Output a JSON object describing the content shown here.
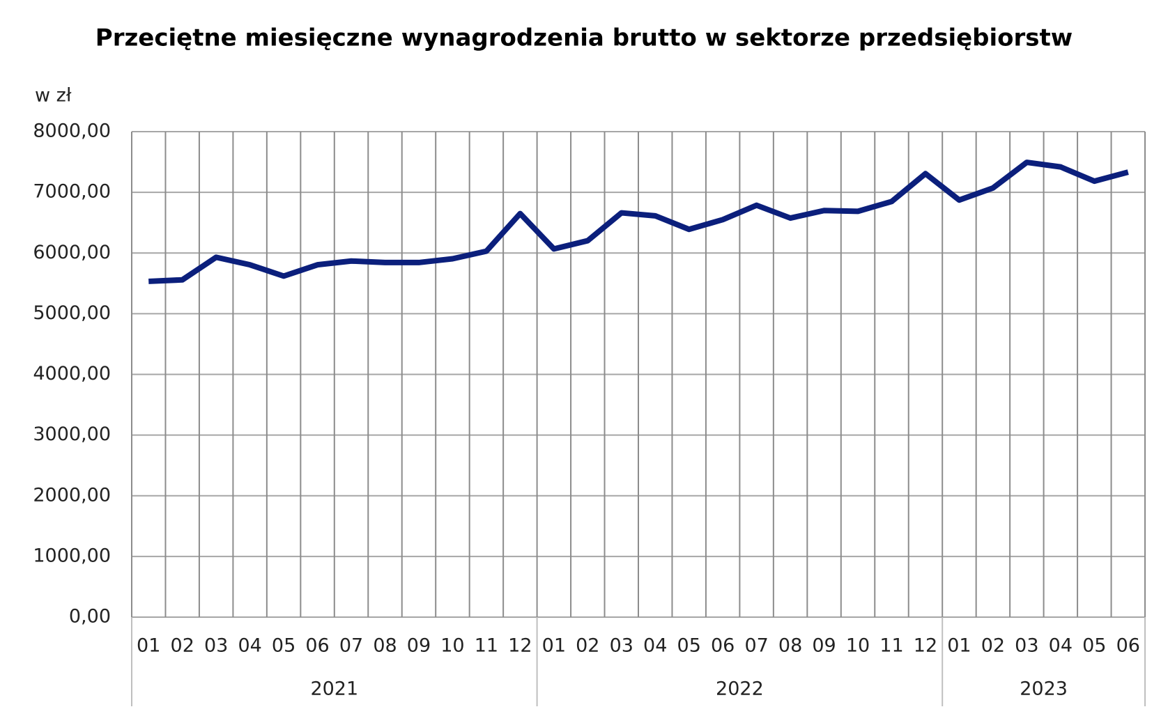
{
  "chart_data": {
    "type": "line",
    "title": "Przeciętne miesięczne wynagrodzenia brutto w sektorze przedsiębiorstw",
    "y_axis_label": "w zł",
    "groups": [
      {
        "label": "2021",
        "categories": [
          "01",
          "02",
          "03",
          "04",
          "05",
          "06",
          "07",
          "08",
          "09",
          "10",
          "11",
          "12"
        ]
      },
      {
        "label": "2022",
        "categories": [
          "01",
          "02",
          "03",
          "04",
          "05",
          "06",
          "07",
          "08",
          "09",
          "10",
          "11",
          "12"
        ]
      },
      {
        "label": "2023",
        "categories": [
          "01",
          "02",
          "03",
          "04",
          "05",
          "06"
        ]
      }
    ],
    "series": [
      {
        "color": "#0b1f7c",
        "values": [
          5533,
          5558,
          5930,
          5806,
          5620,
          5806,
          5868,
          5843,
          5843,
          5905,
          6030,
          6650,
          6067,
          6203,
          6662,
          6613,
          6390,
          6550,
          6787,
          6576,
          6700,
          6687,
          6849,
          7308,
          6873,
          7072,
          7494,
          7419,
          7184,
          7333
        ]
      }
    ],
    "ylim": [
      0,
      8000
    ],
    "yticks": [
      {
        "value": 0,
        "label": "0,00"
      },
      {
        "value": 1000,
        "label": "1000,00"
      },
      {
        "value": 2000,
        "label": "2000,00"
      },
      {
        "value": 3000,
        "label": "3000,00"
      },
      {
        "value": 4000,
        "label": "4000,00"
      },
      {
        "value": 5000,
        "label": "5000,00"
      },
      {
        "value": 6000,
        "label": "6000,00"
      },
      {
        "value": 7000,
        "label": "7000,00"
      },
      {
        "value": 8000,
        "label": "8000,00"
      }
    ],
    "grid": true
  }
}
